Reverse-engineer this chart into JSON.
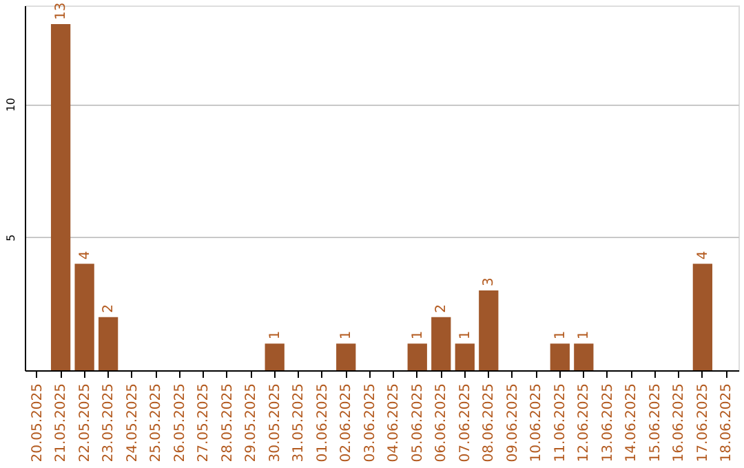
{
  "chart_data": {
    "type": "bar",
    "categories": [
      "20.05.2025",
      "21.05.2025",
      "22.05.2025",
      "23.05.2025",
      "24.05.2025",
      "25.05.2025",
      "26.05.2025",
      "27.05.2025",
      "28.05.2025",
      "29.05.2025",
      "30.05.2025",
      "31.05.2025",
      "01.06.2025",
      "02.06.2025",
      "03.06.2025",
      "04.06.2025",
      "05.06.2025",
      "06.06.2025",
      "07.06.2025",
      "08.06.2025",
      "09.06.2025",
      "10.06.2025",
      "11.06.2025",
      "12.06.2025",
      "13.06.2025",
      "14.06.2025",
      "15.06.2025",
      "16.06.2025",
      "17.06.2025",
      "18.06.2025"
    ],
    "values": [
      null,
      13,
      4,
      2,
      null,
      null,
      null,
      null,
      null,
      null,
      1,
      null,
      null,
      1,
      null,
      null,
      1,
      2,
      1,
      3,
      null,
      null,
      1,
      1,
      null,
      null,
      null,
      null,
      4,
      null
    ],
    "color": "#a0572a",
    "ylim": [
      0,
      13.7
    ],
    "yticks": [
      5,
      10
    ],
    "grid": "y",
    "data_labels": true
  }
}
